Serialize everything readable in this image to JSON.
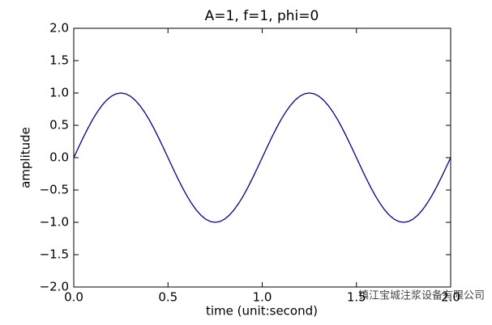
{
  "chart_data": {
    "type": "line",
    "title": "A=1, f=1, phi=0",
    "x_label": "time (unit:second)",
    "y_label": "amplitude",
    "watermark": "镇江宝城注浆设备有限公司",
    "x": [
      0,
      0.025,
      0.05,
      0.075,
      0.1,
      0.125,
      0.15,
      0.175,
      0.2,
      0.225,
      0.25,
      0.275,
      0.3,
      0.325,
      0.35,
      0.375,
      0.4,
      0.425,
      0.45,
      0.475,
      0.5,
      0.525,
      0.55,
      0.575,
      0.6,
      0.625,
      0.65,
      0.675,
      0.7,
      0.725,
      0.75,
      0.775,
      0.8,
      0.825,
      0.85,
      0.875,
      0.9,
      0.925,
      0.95,
      0.975,
      1,
      1.025,
      1.05,
      1.075,
      1.1,
      1.125,
      1.15,
      1.175,
      1.2,
      1.225,
      1.25,
      1.275,
      1.3,
      1.325,
      1.35,
      1.375,
      1.4,
      1.425,
      1.45,
      1.475,
      1.5,
      1.525,
      1.55,
      1.575,
      1.6,
      1.625,
      1.65,
      1.675,
      1.7,
      1.725,
      1.75,
      1.775,
      1.8,
      1.825,
      1.85,
      1.875,
      1.9,
      1.925,
      1.95,
      1.975,
      2
    ],
    "series": [
      {
        "color": "#00008b",
        "values": [
          0,
          0.156,
          0.309,
          0.454,
          0.588,
          0.707,
          0.809,
          0.891,
          0.951,
          0.988,
          1,
          0.988,
          0.951,
          0.891,
          0.809,
          0.707,
          0.588,
          0.454,
          0.309,
          0.156,
          0,
          -0.156,
          -0.309,
          -0.454,
          -0.588,
          -0.707,
          -0.809,
          -0.891,
          -0.951,
          -0.988,
          -1,
          -0.988,
          -0.951,
          -0.891,
          -0.809,
          -0.707,
          -0.588,
          -0.454,
          -0.309,
          -0.156,
          0,
          0.156,
          0.309,
          0.454,
          0.588,
          0.707,
          0.809,
          0.891,
          0.951,
          0.988,
          1,
          0.988,
          0.951,
          0.891,
          0.809,
          0.707,
          0.588,
          0.454,
          0.309,
          0.156,
          0,
          -0.156,
          -0.309,
          -0.454,
          -0.588,
          -0.707,
          -0.809,
          -0.891,
          -0.951,
          -0.988,
          -1,
          -0.988,
          -0.951,
          -0.891,
          -0.809,
          -0.707,
          -0.588,
          -0.454,
          -0.309,
          -0.156,
          0
        ]
      }
    ],
    "xlim": [
      0,
      2
    ],
    "xticks": [
      {
        "value": 0,
        "label": "0.0"
      },
      {
        "value": 0.5,
        "label": "0.5"
      },
      {
        "value": 1,
        "label": "1.0"
      },
      {
        "value": 1.5,
        "label": "1.5"
      },
      {
        "value": 2,
        "label": "2.0"
      }
    ],
    "ylim": [
      -2,
      2
    ],
    "yticks": [
      {
        "value": -2,
        "label": "−2.0"
      },
      {
        "value": -1.5,
        "label": "−1.5"
      },
      {
        "value": -1,
        "label": "−1.0"
      },
      {
        "value": -0.5,
        "label": "−0.5"
      },
      {
        "value": 0,
        "label": "0.0"
      },
      {
        "value": 0.5,
        "label": "0.5"
      },
      {
        "value": 1,
        "label": "1.0"
      },
      {
        "value": 1.5,
        "label": "1.5"
      },
      {
        "value": 2,
        "label": "2.0"
      }
    ],
    "grid": false
  }
}
